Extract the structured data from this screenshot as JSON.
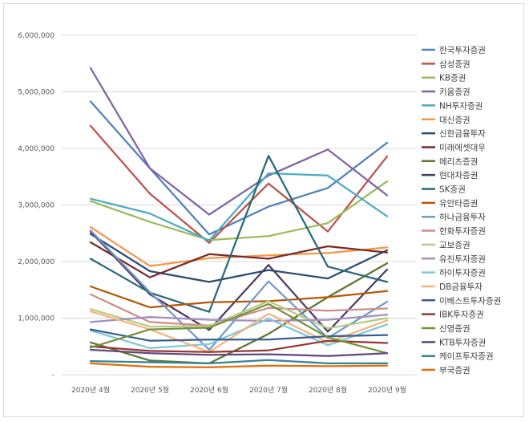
{
  "chart_data": {
    "type": "line",
    "title": "",
    "xlabel": "",
    "ylabel": "",
    "ylim": [
      0,
      6000000
    ],
    "yticks": [
      0,
      1000000,
      2000000,
      3000000,
      4000000,
      5000000,
      6000000
    ],
    "ytick_labels": [
      "-",
      "1,000,000",
      "2,000,000",
      "3,000,000",
      "4,000,000",
      "5,000,000",
      "6,000,000"
    ],
    "grid": "horizontal",
    "legend_position": "right",
    "categories": [
      "2020년 4월",
      "2020년 5월",
      "2020년 6월",
      "2020년 7월",
      "2020년 8월",
      "2020년 9월"
    ],
    "series": [
      {
        "name": "한국투자증권",
        "color": "#4f81bd",
        "values": [
          4830000,
          3650000,
          2480000,
          2970000,
          3300000,
          4100000
        ]
      },
      {
        "name": "삼성증권",
        "color": "#c0504d",
        "values": [
          4400000,
          3200000,
          2330000,
          3380000,
          2530000,
          3860000
        ]
      },
      {
        "name": "KB증권",
        "color": "#9bbb59",
        "values": [
          3070000,
          2700000,
          2380000,
          2450000,
          2680000,
          3420000
        ]
      },
      {
        "name": "키움증권",
        "color": "#8064a2",
        "values": [
          5420000,
          3650000,
          2830000,
          3520000,
          3980000,
          3170000
        ]
      },
      {
        "name": "NH투자증권",
        "color": "#4bacc6",
        "values": [
          3110000,
          2850000,
          2370000,
          3560000,
          3520000,
          2800000
        ]
      },
      {
        "name": "대신증권",
        "color": "#f79646",
        "values": [
          2610000,
          1920000,
          2060000,
          2110000,
          2150000,
          2250000
        ]
      },
      {
        "name": "신한금융투자",
        "color": "#2c4d75",
        "values": [
          2490000,
          1830000,
          1640000,
          1850000,
          1700000,
          2200000
        ]
      },
      {
        "name": "미래에셋대우",
        "color": "#772c2a",
        "values": [
          2340000,
          1720000,
          2130000,
          2050000,
          2270000,
          2160000
        ]
      },
      {
        "name": "메리츠증권",
        "color": "#5f7530",
        "values": [
          570000,
          250000,
          200000,
          720000,
          1370000,
          1970000
        ]
      },
      {
        "name": "현대차증권",
        "color": "#4d3b62",
        "values": [
          2530000,
          1420000,
          790000,
          1940000,
          760000,
          1860000
        ]
      },
      {
        "name": "SK증권",
        "color": "#276a7c",
        "values": [
          2050000,
          1450000,
          1110000,
          3870000,
          1910000,
          1640000
        ]
      },
      {
        "name": "유안타증권",
        "color": "#b65708",
        "values": [
          1560000,
          1190000,
          1280000,
          1300000,
          1370000,
          1480000
        ]
      },
      {
        "name": "하나금융투자",
        "color": "#729aca",
        "values": [
          2550000,
          1460000,
          440000,
          1650000,
          650000,
          1290000
        ]
      },
      {
        "name": "한화투자증권",
        "color": "#d38b89",
        "values": [
          1420000,
          930000,
          870000,
          1180000,
          1130000,
          1170000
        ]
      },
      {
        "name": "교보증권",
        "color": "#b4cc85",
        "values": [
          1160000,
          850000,
          860000,
          1300000,
          820000,
          1000000
        ]
      },
      {
        "name": "유진투자증권",
        "color": "#a38fc1",
        "values": [
          930000,
          1020000,
          970000,
          950000,
          970000,
          1060000
        ]
      },
      {
        "name": "하이투자증권",
        "color": "#7fc8da",
        "values": [
          780000,
          470000,
          540000,
          990000,
          520000,
          890000
        ]
      },
      {
        "name": "DB금융투자",
        "color": "#f6b47e",
        "values": [
          1120000,
          800000,
          400000,
          1080000,
          570000,
          960000
        ]
      },
      {
        "name": "이베스트투자증권",
        "color": "#3a5e8c",
        "values": [
          800000,
          600000,
          620000,
          620000,
          680000,
          700000
        ]
      },
      {
        "name": "IBK투자증권",
        "color": "#953735",
        "values": [
          500000,
          420000,
          400000,
          430000,
          600000,
          560000
        ]
      },
      {
        "name": "신영증권",
        "color": "#76923c",
        "values": [
          480000,
          800000,
          830000,
          1250000,
          660000,
          380000
        ]
      },
      {
        "name": "KTB투자증권",
        "color": "#5f497a",
        "values": [
          440000,
          380000,
          350000,
          360000,
          330000,
          380000
        ]
      },
      {
        "name": "케이프투자증권",
        "color": "#31859b",
        "values": [
          240000,
          220000,
          200000,
          260000,
          200000,
          200000
        ]
      },
      {
        "name": "부국증권",
        "color": "#e36c09",
        "values": [
          200000,
          140000,
          130000,
          160000,
          150000,
          160000
        ]
      }
    ]
  }
}
